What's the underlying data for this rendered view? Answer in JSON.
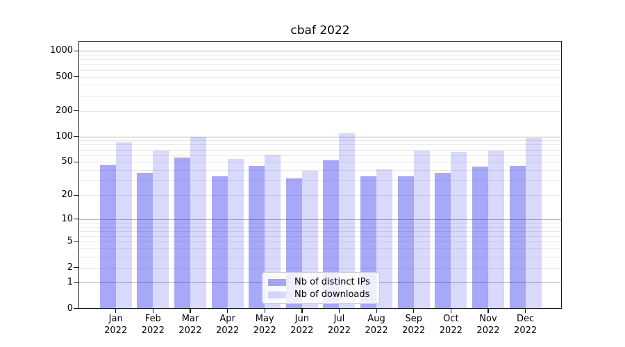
{
  "chart_data": {
    "type": "bar",
    "title": "cbaf 2022",
    "categories": [
      "Jan 2022",
      "Feb 2022",
      "Mar 2022",
      "Apr 2022",
      "May 2022",
      "Jun 2022",
      "Jul 2022",
      "Aug 2022",
      "Sep 2022",
      "Oct 2022",
      "Nov 2022",
      "Dec 2022"
    ],
    "series": [
      {
        "name": "Nb of distinct IPs",
        "color": "rgba(20,20,235,0.37)",
        "values": [
          46,
          37,
          56,
          34,
          45,
          32,
          52,
          34,
          34,
          37,
          44,
          45
        ]
      },
      {
        "name": "Nb of downloads",
        "color": "rgba(20,20,235,0.16)",
        "values": [
          85,
          68,
          100,
          54,
          61,
          39,
          110,
          41,
          68,
          66,
          68,
          95
        ]
      }
    ],
    "xlabel": "",
    "ylabel": "",
    "yscale": "log1p",
    "ylim": [
      0,
      1000
    ],
    "yticks": [
      0,
      1,
      2,
      5,
      10,
      20,
      50,
      100,
      200,
      500,
      1000
    ],
    "ytick_major": [
      1,
      10,
      100,
      1000
    ],
    "grid": true,
    "legend_position": "lower center",
    "colors": {
      "grid_major": "#b0b0b0",
      "grid_minor": "#e7e7e7",
      "spine": "#1a1a1a",
      "text": "#000000",
      "legend_border": "#cccccc",
      "legend_bg": "rgba(255,255,255,0.8)"
    }
  }
}
